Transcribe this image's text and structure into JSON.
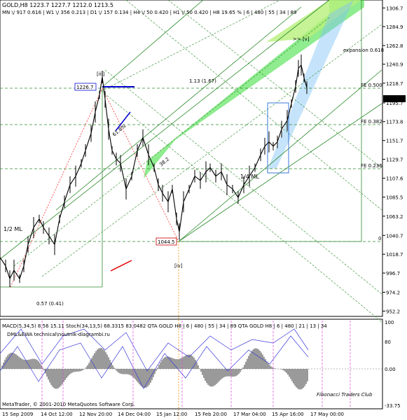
{
  "header": {
    "line1": "GOLD,H8  1223.7 1227.7 1212.0 1213.5",
    "line2": "MN \\/ 917   0.616  |  W1 \\/ 356   0.213  |  D1 \\/ 157   0.134  |  H4 \\/ 50   0.420  |  H1 \\/ 50   0.420  |  H8  19.65 %  |  6 | 480 | 55 | 34 | 89"
  },
  "colors": {
    "price": "#000000",
    "green_band": "#33dd33",
    "pitchfork": "#2a8a2a",
    "blue_band": "#5ab4f0",
    "fib": "#2e8b2e",
    "red_dotted": "#ff3030",
    "macd_fill": "#9a9a9a",
    "price_marker": "#000000"
  },
  "annotations": {
    "top_label": "1226.7",
    "low_label": "1044.5",
    "wave3": "[iii]",
    "wave4": "[iv]",
    "half_ml": "1/2 ML",
    "quarter_ml": "1/4 ML",
    "expansion": "expansion 0.618",
    "fe_0500": "FE 0.500",
    "fe_0382": "FE 0.382",
    "fe_0236": "FE 0.236",
    "fe_0": "0",
    "bottom_left": "0.57 (0.41)",
    "mid_fib": "1.13 (1.67)",
    "right_top": ">> [v]",
    "fib_text_1": "61.8%",
    "fib_text_2": "38.2"
  },
  "indicator": {
    "title": "MACD(5,34,5) 8.56 15.11  Stoch(34,13,5) 68.3315 83.0482  QTA GOLD H8 | 6 | 480 | 55 | 34 | 89  QTA GOLD H8 | 6 | 480 | 21 | 13 | 34",
    "subtitle": "DML&EWA technical\\noutnik-diagrambi.ru",
    "axis": [
      "100",
      "80",
      "0.00",
      "-33.75"
    ],
    "watermark": "Fibonacci Traders Club"
  },
  "footer": {
    "copyright": "MetaTrader, © 2001-2010 MetaQuotes Software Corp."
  },
  "price_panel": {
    "current_price": "1213.5"
  },
  "chart_data": {
    "type": "line",
    "title": "GOLD,H8",
    "x_labels": [
      "15 Sep 2009",
      "14 Oct 12:00",
      "12 Nov 20:00",
      "14 Dec 04:00",
      "15 Jan 12:00",
      "15 Feb 20:00",
      "17 Mar 04:00",
      "15 Apr 16:00",
      "17 May 00:00"
    ],
    "y_ticks": [
      1306.7,
      1284.9,
      1262.8,
      1240.9,
      1218.7,
      1195.7,
      1173.8,
      1151.7,
      1129.7,
      1107.6,
      1085.5,
      1063.2,
      1040.7,
      1018.7,
      996.7,
      974.2,
      952.2
    ],
    "ylim": [
      946,
      1316
    ],
    "series": [
      {
        "points": [
          [
            0,
            1015
          ],
          [
            8,
            1005
          ],
          [
            14,
            990
          ],
          [
            20,
            1000
          ],
          [
            28,
            990
          ],
          [
            34,
            1005
          ],
          [
            40,
            1030
          ],
          [
            48,
            1050
          ],
          [
            56,
            1060
          ],
          [
            62,
            1050
          ],
          [
            70,
            1040
          ],
          [
            78,
            1030
          ],
          [
            85,
            1060
          ],
          [
            92,
            1080
          ],
          [
            100,
            1100
          ],
          [
            108,
            1110
          ],
          [
            116,
            1125
          ],
          [
            122,
            1140
          ],
          [
            130,
            1160
          ],
          [
            136,
            1185
          ],
          [
            142,
            1205
          ],
          [
            146,
            1226
          ],
          [
            150,
            1200
          ],
          [
            155,
            1165
          ],
          [
            160,
            1140
          ],
          [
            166,
            1130
          ],
          [
            172,
            1125
          ],
          [
            180,
            1095
          ],
          [
            188,
            1110
          ],
          [
            196,
            1140
          ],
          [
            204,
            1155
          ],
          [
            212,
            1135
          ],
          [
            220,
            1120
          ],
          [
            226,
            1100
          ],
          [
            232,
            1090
          ],
          [
            240,
            1080
          ],
          [
            246,
            1095
          ],
          [
            252,
            1060
          ],
          [
            256,
            1045
          ],
          [
            262,
            1080
          ],
          [
            270,
            1095
          ],
          [
            278,
            1110
          ],
          [
            286,
            1105
          ],
          [
            294,
            1115
          ],
          [
            300,
            1120
          ],
          [
            308,
            1110
          ],
          [
            316,
            1115
          ],
          [
            324,
            1100
          ],
          [
            332,
            1095
          ],
          [
            340,
            1085
          ],
          [
            348,
            1100
          ],
          [
            356,
            1110
          ],
          [
            364,
            1120
          ],
          [
            372,
            1135
          ],
          [
            378,
            1145
          ],
          [
            384,
            1150
          ],
          [
            390,
            1145
          ],
          [
            396,
            1150
          ],
          [
            402,
            1165
          ],
          [
            410,
            1175
          ],
          [
            416,
            1195
          ],
          [
            422,
            1215
          ],
          [
            426,
            1236
          ],
          [
            430,
            1240
          ],
          [
            434,
            1225
          ],
          [
            438,
            1213.5
          ]
        ]
      }
    ]
  }
}
